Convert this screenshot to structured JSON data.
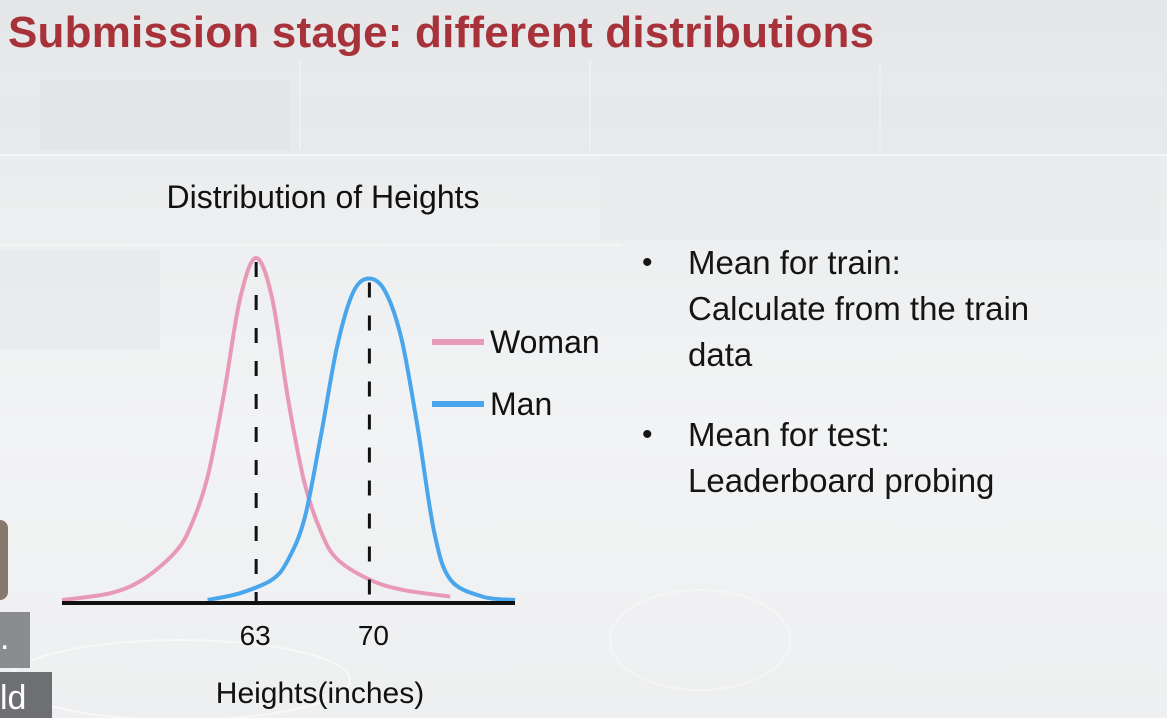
{
  "slide": {
    "title": "Submission stage: different distributions"
  },
  "chart_data": {
    "type": "line",
    "title": "Distribution of Heights",
    "xlabel": "Heights(inches)",
    "ylabel": "",
    "x_ticks": [
      63,
      70
    ],
    "xlim": [
      51,
      79
    ],
    "ylim": [
      0,
      1
    ],
    "series": [
      {
        "name": "Woman",
        "color": "#e999b8",
        "mean": 63,
        "x": [
          51,
          54,
          56,
          58,
          59,
          60,
          61,
          62,
          63,
          64,
          65,
          66,
          67,
          68,
          70,
          72,
          75
        ],
        "values": [
          0.0,
          0.02,
          0.06,
          0.14,
          0.22,
          0.36,
          0.6,
          0.88,
          1.0,
          0.88,
          0.58,
          0.34,
          0.2,
          0.12,
          0.06,
          0.03,
          0.01
        ]
      },
      {
        "name": "Man",
        "color": "#49a5ec",
        "mean": 70,
        "x": [
          60,
          62,
          64,
          65,
          66,
          67,
          68,
          69,
          70,
          71,
          72,
          73,
          74,
          75,
          77,
          79
        ],
        "values": [
          0.0,
          0.02,
          0.06,
          0.12,
          0.24,
          0.48,
          0.74,
          0.9,
          0.94,
          0.9,
          0.76,
          0.5,
          0.2,
          0.06,
          0.01,
          0.0
        ]
      }
    ],
    "mean_lines": [
      63,
      70
    ],
    "legend_placement": "right",
    "grid": false
  },
  "bullets": [
    {
      "lines": [
        "Mean for train:",
        "Calculate from the train",
        "data"
      ]
    },
    {
      "lines": [
        "Mean for test:",
        "Leaderboard probing"
      ]
    }
  ],
  "edge_text": [
    ".",
    "ld"
  ]
}
